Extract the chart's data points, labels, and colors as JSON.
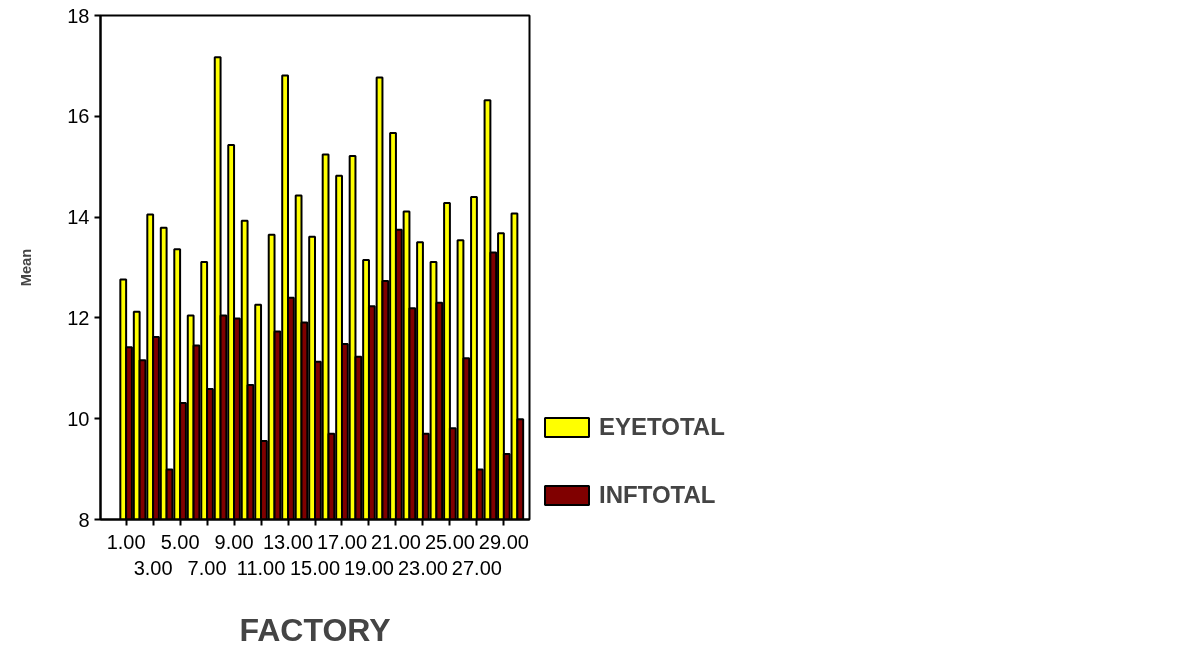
{
  "chart_data": {
    "type": "bar",
    "xlabel": "FACTORY",
    "ylabel": "Mean",
    "categories": [
      "1.00",
      null,
      "3.00",
      null,
      "5.00",
      null,
      "7.00",
      null,
      "9.00",
      null,
      "11.00",
      null,
      "13.00",
      null,
      "15.00",
      null,
      "17.00",
      null,
      "19.00",
      null,
      "21.00",
      null,
      "23.00",
      null,
      "25.00",
      null,
      "27.00",
      null,
      "29.00",
      null
    ],
    "series": [
      {
        "name": "EYETOTAL",
        "color": "#ffff00",
        "values": [
          12.76,
          12.12,
          14.05,
          13.79,
          13.36,
          12.05,
          13.11,
          17.17,
          15.43,
          13.93,
          12.26,
          13.65,
          16.81,
          14.43,
          13.61,
          15.24,
          14.82,
          15.21,
          13.15,
          16.77,
          15.67,
          14.11,
          13.5,
          13.11,
          14.28,
          13.54,
          14.4,
          16.32,
          13.68,
          14.07
        ]
      },
      {
        "name": "INFTOTAL",
        "color": "#800000",
        "values": [
          11.42,
          11.16,
          11.62,
          8.99,
          10.31,
          11.45,
          10.59,
          12.05,
          11.99,
          10.67,
          9.56,
          11.73,
          12.4,
          11.91,
          11.13,
          9.7,
          11.48,
          11.23,
          12.23,
          12.73,
          13.75,
          12.19,
          9.7,
          12.3,
          9.81,
          11.2,
          8.99,
          13.3,
          9.3,
          9.99
        ]
      }
    ],
    "ylim": [
      8,
      18
    ],
    "yticks": [
      8,
      10,
      12,
      14,
      16,
      18
    ],
    "grid": false,
    "legend": "right"
  }
}
